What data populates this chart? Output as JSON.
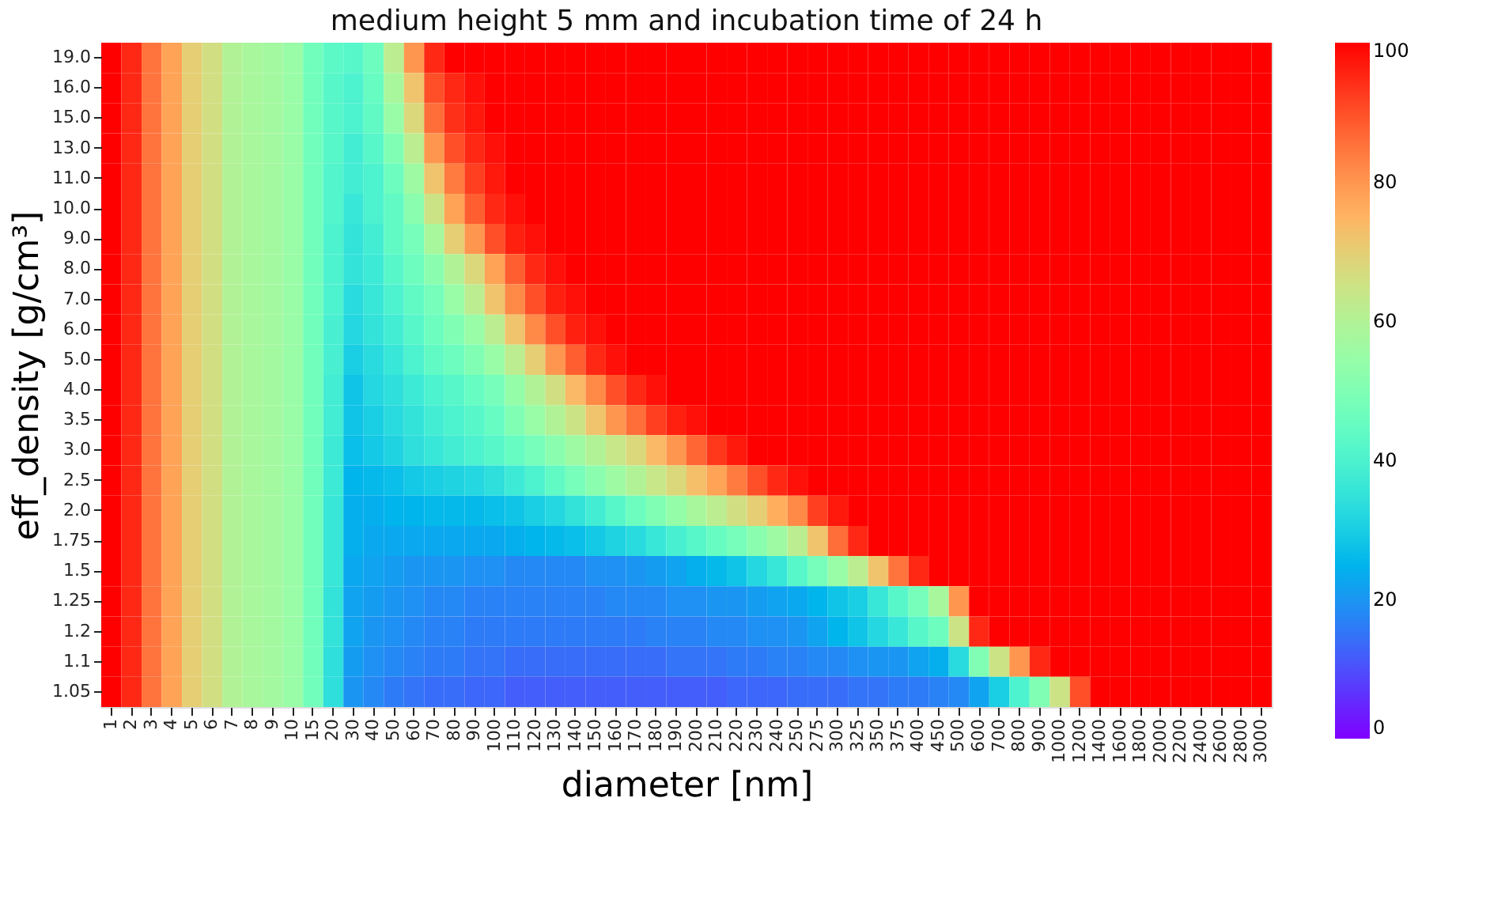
{
  "chart_data": {
    "type": "heatmap",
    "title": "medium height 5 mm and incubation time of 24 h",
    "xlabel": "diameter [nm]",
    "ylabel": "eff_density [g/cm³]",
    "categories": [
      "1",
      "2",
      "3",
      "4",
      "5",
      "6",
      "7",
      "8",
      "9",
      "10",
      "15",
      "20",
      "30",
      "40",
      "50",
      "60",
      "70",
      "80",
      "90",
      "100",
      "110",
      "120",
      "130",
      "140",
      "150",
      "160",
      "170",
      "180",
      "190",
      "200",
      "210",
      "220",
      "230",
      "240",
      "250",
      "275",
      "300",
      "325",
      "350",
      "375",
      "400",
      "450",
      "500",
      "600",
      "700",
      "800",
      "900",
      "1000",
      "1200",
      "1400",
      "1600",
      "1800",
      "2000",
      "2200",
      "2400",
      "2600",
      "2800",
      "3000"
    ],
    "y_categories": [
      "19.0",
      "16.0",
      "15.0",
      "13.0",
      "11.0",
      "10.0",
      "9.0",
      "8.0",
      "7.0",
      "6.0",
      "5.0",
      "4.0",
      "3.5",
      "3.0",
      "2.5",
      "2.0",
      "1.75",
      "1.5",
      "1.25",
      "1.2",
      "1.1",
      "1.05"
    ],
    "clim": [
      0,
      100
    ],
    "cticks": [
      0,
      20,
      40,
      60,
      80,
      100
    ],
    "grid": false,
    "cells": [
      [
        100,
        95,
        85,
        78,
        70,
        66,
        60,
        58,
        57,
        55,
        47,
        43,
        42,
        46,
        62,
        80,
        95,
        100,
        100,
        100,
        100,
        100,
        100,
        100,
        100,
        100,
        100,
        100,
        100,
        100,
        100,
        100,
        100,
        100,
        100,
        100,
        100,
        100,
        100,
        100,
        100,
        100,
        100,
        100,
        100,
        100,
        100,
        100,
        100,
        100,
        100,
        100,
        100,
        100,
        100,
        100,
        100,
        100
      ],
      [
        100,
        95,
        85,
        78,
        70,
        66,
        60,
        58,
        57,
        55,
        47,
        42,
        40,
        45,
        58,
        72,
        90,
        95,
        98,
        100,
        100,
        100,
        100,
        100,
        100,
        100,
        100,
        100,
        100,
        100,
        100,
        100,
        100,
        100,
        100,
        100,
        100,
        100,
        100,
        100,
        100,
        100,
        100,
        100,
        100,
        100,
        100,
        100,
        100,
        100,
        100,
        100,
        100,
        100,
        100,
        100,
        100,
        100
      ],
      [
        100,
        95,
        85,
        78,
        70,
        66,
        60,
        58,
        57,
        55,
        47,
        42,
        40,
        44,
        55,
        68,
        86,
        94,
        97,
        100,
        100,
        100,
        100,
        100,
        100,
        100,
        100,
        100,
        100,
        100,
        100,
        100,
        100,
        100,
        100,
        100,
        100,
        100,
        100,
        100,
        100,
        100,
        100,
        100,
        100,
        100,
        100,
        100,
        100,
        100,
        100,
        100,
        100,
        100,
        100,
        100,
        100,
        100
      ],
      [
        100,
        95,
        85,
        78,
        70,
        66,
        60,
        58,
        57,
        55,
        47,
        42,
        38,
        42,
        50,
        62,
        80,
        90,
        95,
        98,
        100,
        100,
        100,
        100,
        100,
        100,
        100,
        100,
        100,
        100,
        100,
        100,
        100,
        100,
        100,
        100,
        100,
        100,
        100,
        100,
        100,
        100,
        100,
        100,
        100,
        100,
        100,
        100,
        100,
        100,
        100,
        100,
        100,
        100,
        100,
        100,
        100,
        100
      ],
      [
        100,
        95,
        85,
        78,
        70,
        66,
        60,
        58,
        57,
        55,
        47,
        41,
        38,
        40,
        46,
        56,
        72,
        84,
        92,
        97,
        100,
        100,
        100,
        100,
        100,
        100,
        100,
        100,
        100,
        100,
        100,
        100,
        100,
        100,
        100,
        100,
        100,
        100,
        100,
        100,
        100,
        100,
        100,
        100,
        100,
        100,
        100,
        100,
        100,
        100,
        100,
        100,
        100,
        100,
        100,
        100,
        100,
        100
      ],
      [
        100,
        95,
        85,
        78,
        70,
        66,
        60,
        58,
        57,
        55,
        47,
        41,
        36,
        40,
        44,
        52,
        65,
        78,
        88,
        95,
        98,
        100,
        100,
        100,
        100,
        100,
        100,
        100,
        100,
        100,
        100,
        100,
        100,
        100,
        100,
        100,
        100,
        100,
        100,
        100,
        100,
        100,
        100,
        100,
        100,
        100,
        100,
        100,
        100,
        100,
        100,
        100,
        100,
        100,
        100,
        100,
        100,
        100
      ],
      [
        100,
        95,
        85,
        78,
        70,
        66,
        60,
        58,
        57,
        55,
        47,
        40,
        35,
        38,
        44,
        48,
        58,
        70,
        80,
        90,
        96,
        98,
        100,
        100,
        100,
        100,
        100,
        100,
        100,
        100,
        100,
        100,
        100,
        100,
        100,
        100,
        100,
        100,
        100,
        100,
        100,
        100,
        100,
        100,
        100,
        100,
        100,
        100,
        100,
        100,
        100,
        100,
        100,
        100,
        100,
        100,
        100,
        100
      ],
      [
        100,
        95,
        85,
        78,
        70,
        66,
        60,
        58,
        57,
        55,
        47,
        40,
        35,
        37,
        42,
        46,
        52,
        60,
        68,
        78,
        88,
        95,
        98,
        100,
        100,
        100,
        100,
        100,
        100,
        100,
        100,
        100,
        100,
        100,
        100,
        100,
        100,
        100,
        100,
        100,
        100,
        100,
        100,
        100,
        100,
        100,
        100,
        100,
        100,
        100,
        100,
        100,
        100,
        100,
        100,
        100,
        100,
        100
      ],
      [
        100,
        95,
        85,
        78,
        70,
        66,
        60,
        58,
        57,
        55,
        47,
        40,
        33,
        36,
        40,
        44,
        48,
        55,
        62,
        72,
        82,
        90,
        96,
        98,
        100,
        100,
        100,
        100,
        100,
        100,
        100,
        100,
        100,
        100,
        100,
        100,
        100,
        100,
        100,
        100,
        100,
        100,
        100,
        100,
        100,
        100,
        100,
        100,
        100,
        100,
        100,
        100,
        100,
        100,
        100,
        100,
        100,
        100
      ],
      [
        100,
        95,
        85,
        78,
        70,
        66,
        60,
        58,
        57,
        55,
        47,
        39,
        32,
        35,
        38,
        42,
        46,
        50,
        55,
        62,
        72,
        82,
        90,
        96,
        98,
        100,
        100,
        100,
        100,
        100,
        100,
        100,
        100,
        100,
        100,
        100,
        100,
        100,
        100,
        100,
        100,
        100,
        100,
        100,
        100,
        100,
        100,
        100,
        100,
        100,
        100,
        100,
        100,
        100,
        100,
        100,
        100,
        100
      ],
      [
        100,
        95,
        85,
        78,
        70,
        66,
        60,
        58,
        57,
        55,
        47,
        39,
        30,
        33,
        36,
        40,
        44,
        46,
        50,
        55,
        62,
        70,
        80,
        88,
        95,
        98,
        100,
        100,
        100,
        100,
        100,
        100,
        100,
        100,
        100,
        100,
        100,
        100,
        100,
        100,
        100,
        100,
        100,
        100,
        100,
        100,
        100,
        100,
        100,
        100,
        100,
        100,
        100,
        100,
        100,
        100,
        100,
        100
      ],
      [
        100,
        95,
        85,
        78,
        70,
        66,
        60,
        58,
        57,
        55,
        47,
        38,
        28,
        32,
        34,
        37,
        40,
        42,
        45,
        48,
        54,
        60,
        66,
        74,
        82,
        90,
        95,
        98,
        100,
        100,
        100,
        100,
        100,
        100,
        100,
        100,
        100,
        100,
        100,
        100,
        100,
        100,
        100,
        100,
        100,
        100,
        100,
        100,
        100,
        100,
        100,
        100,
        100,
        100,
        100,
        100,
        100,
        100
      ],
      [
        100,
        95,
        85,
        78,
        70,
        66,
        60,
        58,
        57,
        55,
        47,
        38,
        28,
        30,
        33,
        35,
        38,
        40,
        42,
        45,
        50,
        55,
        60,
        65,
        72,
        80,
        86,
        92,
        96,
        98,
        100,
        100,
        100,
        100,
        100,
        100,
        100,
        100,
        100,
        100,
        100,
        100,
        100,
        100,
        100,
        100,
        100,
        100,
        100,
        100,
        100,
        100,
        100,
        100,
        100,
        100,
        100,
        100
      ],
      [
        100,
        95,
        85,
        78,
        70,
        66,
        60,
        58,
        57,
        55,
        47,
        37,
        27,
        29,
        31,
        34,
        36,
        38,
        40,
        42,
        45,
        48,
        52,
        56,
        60,
        64,
        68,
        74,
        80,
        87,
        93,
        97,
        100,
        100,
        100,
        100,
        100,
        100,
        100,
        100,
        100,
        100,
        100,
        100,
        100,
        100,
        100,
        100,
        100,
        100,
        100,
        100,
        100,
        100,
        100,
        100,
        100,
        100
      ],
      [
        100,
        95,
        85,
        78,
        70,
        66,
        60,
        58,
        57,
        55,
        47,
        37,
        25,
        26,
        27,
        29,
        30,
        31,
        32,
        34,
        37,
        40,
        44,
        48,
        52,
        56,
        60,
        64,
        68,
        73,
        78,
        84,
        90,
        95,
        98,
        100,
        100,
        100,
        100,
        100,
        100,
        100,
        100,
        100,
        100,
        100,
        100,
        100,
        100,
        100,
        100,
        100,
        100,
        100,
        100,
        100,
        100,
        100
      ],
      [
        100,
        95,
        85,
        78,
        70,
        66,
        60,
        58,
        57,
        55,
        47,
        36,
        24,
        24,
        25,
        25,
        26,
        26,
        26,
        27,
        28,
        30,
        32,
        35,
        38,
        42,
        46,
        50,
        54,
        58,
        62,
        66,
        70,
        76,
        82,
        92,
        97,
        100,
        100,
        100,
        100,
        100,
        100,
        100,
        100,
        100,
        100,
        100,
        100,
        100,
        100,
        100,
        100,
        100,
        100,
        100,
        100,
        100
      ],
      [
        100,
        95,
        85,
        78,
        70,
        66,
        60,
        58,
        57,
        55,
        47,
        36,
        24,
        23,
        23,
        23,
        23,
        23,
        23,
        23,
        24,
        25,
        26,
        27,
        29,
        31,
        33,
        36,
        39,
        42,
        45,
        48,
        52,
        56,
        62,
        72,
        86,
        95,
        100,
        100,
        100,
        100,
        100,
        100,
        100,
        100,
        100,
        100,
        100,
        100,
        100,
        100,
        100,
        100,
        100,
        100,
        100,
        100
      ],
      [
        100,
        95,
        85,
        78,
        70,
        66,
        60,
        58,
        57,
        55,
        47,
        36,
        23,
        22,
        21,
        20,
        20,
        20,
        19,
        19,
        18,
        18,
        18,
        18,
        19,
        19,
        20,
        21,
        22,
        24,
        26,
        28,
        32,
        36,
        42,
        48,
        55,
        62,
        72,
        85,
        95,
        100,
        100,
        100,
        100,
        100,
        100,
        100,
        100,
        100,
        100,
        100,
        100,
        100,
        100,
        100,
        100,
        100
      ],
      [
        100,
        95,
        85,
        78,
        70,
        66,
        60,
        58,
        57,
        55,
        47,
        35,
        22,
        21,
        20,
        19,
        18,
        18,
        17,
        17,
        17,
        17,
        17,
        17,
        17,
        18,
        18,
        18,
        19,
        19,
        20,
        20,
        21,
        22,
        23,
        25,
        28,
        30,
        36,
        42,
        48,
        58,
        80,
        100,
        100,
        100,
        100,
        100,
        100,
        100,
        100,
        100,
        100,
        100,
        100,
        100,
        100,
        100
      ],
      [
        100,
        95,
        85,
        78,
        70,
        66,
        60,
        58,
        57,
        55,
        47,
        35,
        22,
        20,
        19,
        18,
        17,
        17,
        16,
        16,
        16,
        16,
        16,
        16,
        16,
        16,
        16,
        17,
        17,
        17,
        18,
        18,
        19,
        19,
        20,
        22,
        25,
        28,
        32,
        36,
        42,
        46,
        65,
        95,
        100,
        100,
        100,
        100,
        100,
        100,
        100,
        100,
        100,
        100,
        100,
        100,
        100,
        100
      ],
      [
        100,
        95,
        85,
        78,
        70,
        66,
        60,
        58,
        57,
        55,
        47,
        34,
        21,
        19,
        18,
        17,
        16,
        16,
        15,
        15,
        14,
        14,
        14,
        14,
        14,
        14,
        14,
        14,
        15,
        15,
        15,
        16,
        16,
        17,
        17,
        18,
        18,
        19,
        20,
        20,
        22,
        24,
        33,
        50,
        65,
        80,
        95,
        100,
        100,
        100,
        100,
        100,
        100,
        100,
        100,
        100,
        100,
        100
      ],
      [
        100,
        95,
        85,
        78,
        70,
        66,
        60,
        58,
        57,
        55,
        47,
        34,
        20,
        18,
        16,
        15,
        14,
        14,
        13,
        13,
        12,
        12,
        12,
        12,
        12,
        12,
        12,
        12,
        12,
        12,
        12,
        13,
        13,
        13,
        14,
        14,
        14,
        15,
        15,
        16,
        16,
        17,
        18,
        22,
        30,
        40,
        50,
        65,
        90,
        100,
        100,
        100,
        100,
        100,
        100,
        100,
        100,
        100
      ]
    ]
  }
}
